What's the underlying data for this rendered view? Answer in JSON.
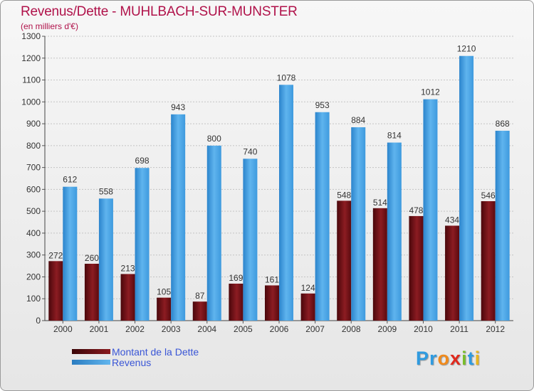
{
  "title": "Revenus/Dette - MUHLBACH-SUR-MUNSTER",
  "subtitle": "(en milliers d'€)",
  "colors": {
    "dette": "#6b0d12",
    "revenus": "#3d9de2",
    "title": "#b0124a",
    "legend_text": "#3a56d6"
  },
  "legend": [
    {
      "label": "Montant de la Dette",
      "color": "#6b0d12"
    },
    {
      "label": "Revenus",
      "color": "#3d9de2"
    }
  ],
  "logo": {
    "letters": [
      "P",
      "r",
      "o",
      "x",
      "i",
      "t",
      "i"
    ],
    "colors": [
      "#2f9be0",
      "#2f9be0",
      "#f08a1c",
      "#e0291d",
      "#79bd2a",
      "#2f9be0",
      "#e8b61e"
    ]
  },
  "chart_data": {
    "type": "bar",
    "title": "Revenus/Dette - MUHLBACH-SUR-MUNSTER",
    "ylabel": "(en milliers d'€)",
    "xlabel": "",
    "ylim": [
      0,
      1300
    ],
    "yticks": [
      0,
      100,
      200,
      300,
      400,
      500,
      600,
      700,
      800,
      900,
      1000,
      1100,
      1200,
      1300
    ],
    "grid": true,
    "legend_position": "bottom-left",
    "categories": [
      "2000",
      "2001",
      "2002",
      "2003",
      "2004",
      "2005",
      "2006",
      "2007",
      "2008",
      "2009",
      "2010",
      "2011",
      "2012"
    ],
    "series": [
      {
        "name": "Montant de la Dette",
        "values": [
          272,
          260,
          213,
          105,
          87,
          169,
          161,
          124,
          548,
          514,
          478,
          434,
          546
        ]
      },
      {
        "name": "Revenus",
        "values": [
          612,
          558,
          698,
          943,
          800,
          740,
          1078,
          953,
          884,
          814,
          1012,
          1210,
          868
        ]
      }
    ]
  }
}
